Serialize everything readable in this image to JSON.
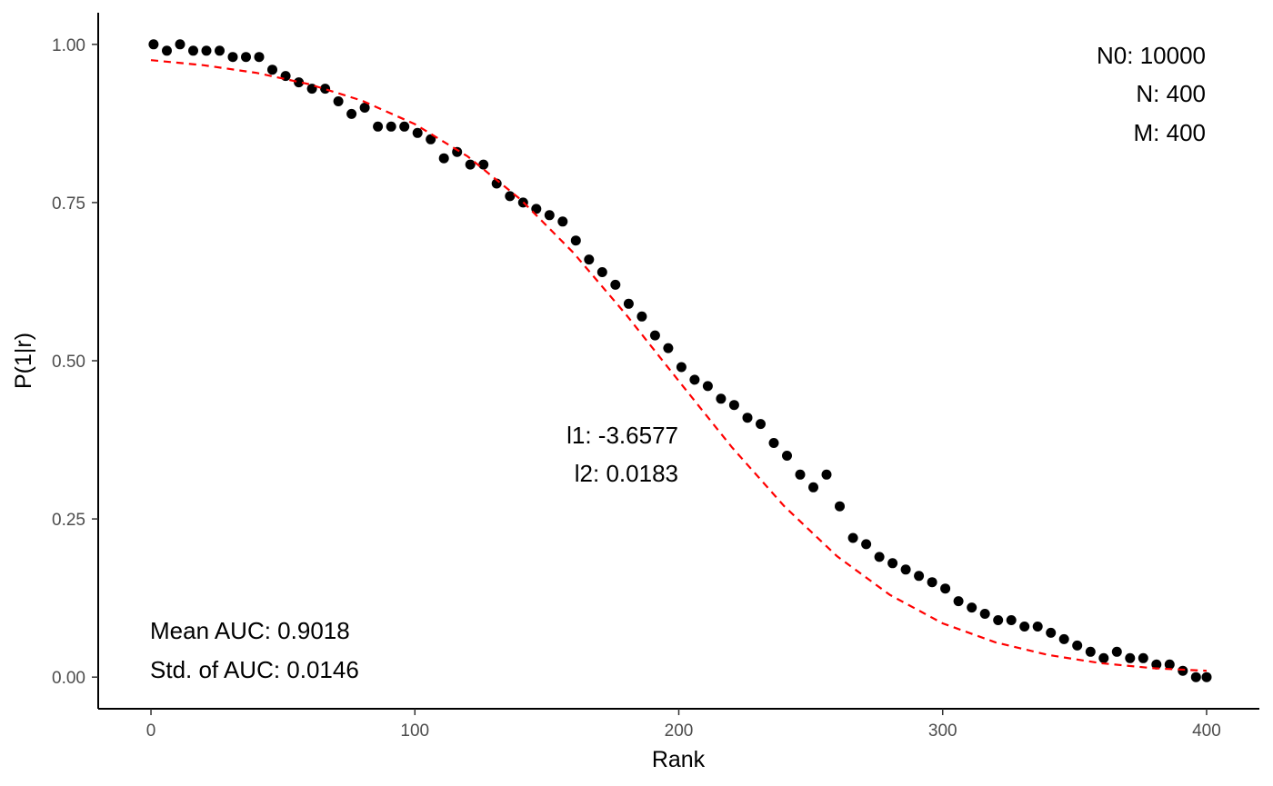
{
  "chart_data": {
    "type": "scatter",
    "title": "",
    "xlabel": "Rank",
    "ylabel": "P(1|r)",
    "xlim": [
      -20,
      420
    ],
    "ylim": [
      -0.05,
      1.05
    ],
    "xticks": [
      0,
      100,
      200,
      300,
      400
    ],
    "xtick_labels": [
      "0",
      "100",
      "200",
      "300",
      "400"
    ],
    "yticks": [
      0,
      0.25,
      0.5,
      0.75,
      1
    ],
    "ytick_labels": [
      "0.00",
      "0.25",
      "0.50",
      "0.75",
      "1.00"
    ],
    "grid": false,
    "point_color": "#000000",
    "fit_color": "#ff0000",
    "points": {
      "x": [
        1,
        6,
        11,
        16,
        21,
        26,
        31,
        36,
        41,
        46,
        51,
        56,
        61,
        66,
        71,
        76,
        81,
        86,
        91,
        96,
        101,
        106,
        111,
        116,
        121,
        126,
        131,
        136,
        141,
        146,
        151,
        156,
        161,
        166,
        171,
        176,
        181,
        186,
        191,
        196,
        201,
        206,
        211,
        216,
        221,
        226,
        231,
        236,
        241,
        246,
        251,
        256,
        261,
        266,
        271,
        276,
        281,
        286,
        291,
        296,
        301,
        306,
        311,
        316,
        321,
        326,
        331,
        336,
        341,
        346,
        351,
        356,
        361,
        366,
        371,
        376,
        381,
        386,
        391,
        396,
        400
      ],
      "y": [
        1.0,
        0.99,
        1.0,
        0.99,
        0.99,
        0.99,
        0.98,
        0.98,
        0.98,
        0.96,
        0.95,
        0.94,
        0.93,
        0.93,
        0.91,
        0.89,
        0.9,
        0.87,
        0.87,
        0.87,
        0.86,
        0.85,
        0.82,
        0.83,
        0.81,
        0.81,
        0.78,
        0.76,
        0.75,
        0.74,
        0.73,
        0.72,
        0.69,
        0.66,
        0.64,
        0.62,
        0.59,
        0.57,
        0.54,
        0.52,
        0.49,
        0.47,
        0.46,
        0.44,
        0.43,
        0.41,
        0.4,
        0.37,
        0.35,
        0.32,
        0.3,
        0.32,
        0.27,
        0.22,
        0.21,
        0.19,
        0.18,
        0.17,
        0.16,
        0.15,
        0.14,
        0.12,
        0.11,
        0.1,
        0.09,
        0.09,
        0.08,
        0.08,
        0.07,
        0.06,
        0.05,
        0.04,
        0.03,
        0.04,
        0.03,
        0.03,
        0.02,
        0.02,
        0.01,
        0.0,
        0.0
      ]
    },
    "fit": {
      "name": "",
      "l1": -3.6577,
      "l2": 0.0183,
      "x": [
        0,
        20,
        40,
        60,
        80,
        100,
        120,
        140,
        160,
        180,
        200,
        220,
        240,
        260,
        280,
        300,
        320,
        340,
        360,
        380,
        400
      ],
      "y": [
        0.975,
        0.967,
        0.955,
        0.937,
        0.911,
        0.874,
        0.823,
        0.755,
        0.671,
        0.573,
        0.468,
        0.364,
        0.27,
        0.191,
        0.13,
        0.085,
        0.055,
        0.035,
        0.022,
        0.014,
        0.01
      ]
    },
    "annotations": {
      "top_right": [
        "N0: 10000",
        "N: 400",
        "M: 400"
      ],
      "center": [
        "l1: -3.6577",
        "l2: 0.0183"
      ],
      "bottom_left": [
        "Mean AUC: 0.9018",
        "Std. of AUC: 0.0146"
      ]
    }
  }
}
